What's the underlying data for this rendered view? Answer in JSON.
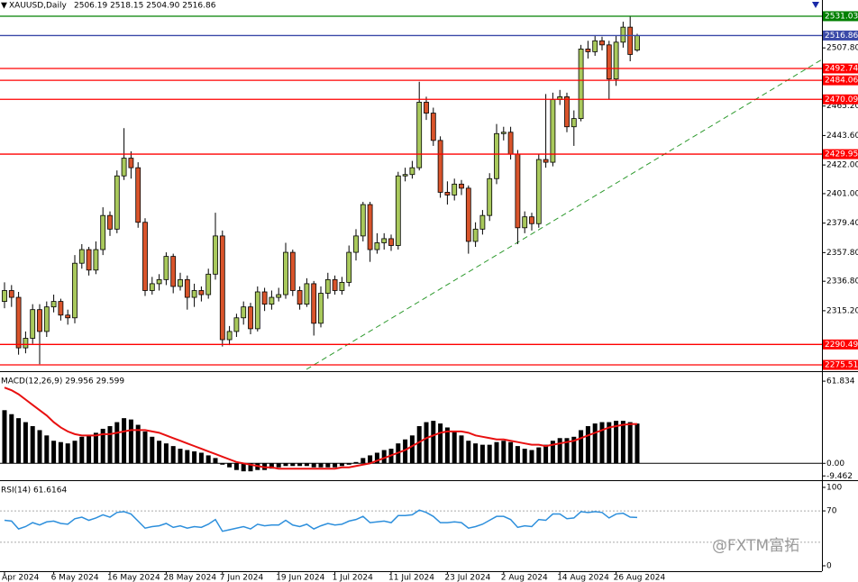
{
  "chart_data": [
    {
      "type": "candlestick",
      "title": "XAUUSD,Daily",
      "quote": "2506.19 2518.15 2504.90 2516.86",
      "categories": [
        "Apr 2024",
        null,
        null,
        null,
        null,
        null,
        null,
        "6 May 2024",
        null,
        null,
        null,
        null,
        null,
        null,
        null,
        "16 May 2024",
        null,
        null,
        null,
        null,
        null,
        null,
        null,
        "28 May 2024",
        null,
        null,
        null,
        null,
        null,
        null,
        null,
        "7 Jun 2024",
        null,
        null,
        null,
        null,
        null,
        null,
        null,
        "19 Jun 2024",
        null,
        null,
        null,
        null,
        null,
        null,
        null,
        "1 Jul 2024",
        null,
        null,
        null,
        null,
        null,
        null,
        null,
        "11 Jul 2024",
        null,
        null,
        null,
        null,
        null,
        null,
        null,
        "23 Jul 2024",
        null,
        null,
        null,
        null,
        null,
        null,
        null,
        "2 Aug 2024",
        null,
        null,
        null,
        null,
        null,
        null,
        null,
        "14 Aug 2024",
        null,
        null,
        null,
        null,
        null,
        null,
        null,
        "26 Aug 2024",
        null,
        null,
        null
      ],
      "open": [
        2322,
        2330,
        2325,
        2288,
        2295,
        2316,
        2300,
        2318,
        2322,
        2312,
        2310,
        2350,
        2360,
        2345,
        2360,
        2385,
        2375,
        2414,
        2427,
        2420,
        2380,
        2330,
        2335,
        2338,
        2355,
        2333,
        2338,
        2325,
        2330,
        2327,
        2342,
        2370,
        2294,
        2300,
        2310,
        2318,
        2302,
        2329,
        2320,
        2325,
        2327,
        2358,
        2330,
        2320,
        2335,
        2306,
        2328,
        2338,
        2330,
        2336,
        2358,
        2370,
        2393,
        2360,
        2365,
        2368,
        2363,
        2414,
        2415,
        2420,
        2468,
        2460,
        2440,
        2402,
        2400,
        2408,
        2405,
        2366,
        2375,
        2385,
        2412,
        2445,
        2446,
        2430,
        2376,
        2384,
        2379,
        2426,
        2424,
        2470,
        2472,
        2450,
        2456,
        2507,
        2505,
        2513,
        2510,
        2485,
        2512,
        2523,
        2506.19
      ],
      "high": [
        2336,
        2334,
        2329,
        2300,
        2320,
        2320,
        2322,
        2327,
        2324,
        2316,
        2356,
        2364,
        2362,
        2366,
        2391,
        2388,
        2418,
        2449,
        2432,
        2424,
        2383,
        2340,
        2342,
        2358,
        2357,
        2343,
        2341,
        2335,
        2333,
        2346,
        2387,
        2374,
        2304,
        2313,
        2322,
        2321,
        2333,
        2332,
        2330,
        2332,
        2365,
        2360,
        2333,
        2339,
        2337,
        2333,
        2343,
        2341,
        2340,
        2363,
        2375,
        2395,
        2395,
        2372,
        2372,
        2371,
        2417,
        2420,
        2425,
        2483,
        2472,
        2464,
        2443,
        2410,
        2412,
        2411,
        2407,
        2380,
        2389,
        2416,
        2452,
        2450,
        2450,
        2433,
        2388,
        2387,
        2430,
        2474,
        2475,
        2477,
        2475,
        2462,
        2510,
        2513,
        2517,
        2516,
        2513,
        2517,
        2527,
        2531.03,
        2518.15
      ],
      "low": [
        2317,
        2318,
        2283,
        2284,
        2291,
        2276,
        2296,
        2314,
        2308,
        2305,
        2306,
        2346,
        2341,
        2342,
        2356,
        2370,
        2372,
        2411,
        2412,
        2376,
        2326,
        2327,
        2330,
        2334,
        2328,
        2330,
        2316,
        2318,
        2322,
        2324,
        2338,
        2289,
        2290,
        2296,
        2305,
        2298,
        2300,
        2315,
        2316,
        2322,
        2324,
        2326,
        2316,
        2318,
        2297,
        2303,
        2324,
        2327,
        2327,
        2333,
        2352,
        2366,
        2351,
        2357,
        2360,
        2359,
        2360,
        2410,
        2412,
        2418,
        2455,
        2436,
        2398,
        2393,
        2396,
        2400,
        2357,
        2362,
        2371,
        2381,
        2408,
        2440,
        2426,
        2364,
        2372,
        2374,
        2376,
        2420,
        2421,
        2466,
        2446,
        2436,
        2454,
        2500,
        2502,
        2506,
        2470,
        2480,
        2508,
        2498,
        2504.9
      ],
      "close": [
        2330,
        2325,
        2288,
        2295,
        2316,
        2300,
        2318,
        2322,
        2312,
        2310,
        2350,
        2360,
        2345,
        2360,
        2385,
        2375,
        2414,
        2427,
        2420,
        2380,
        2330,
        2335,
        2338,
        2355,
        2333,
        2338,
        2325,
        2330,
        2327,
        2342,
        2370,
        2294,
        2300,
        2310,
        2318,
        2302,
        2329,
        2320,
        2325,
        2327,
        2358,
        2330,
        2320,
        2335,
        2306,
        2328,
        2338,
        2330,
        2336,
        2358,
        2370,
        2393,
        2360,
        2365,
        2368,
        2363,
        2414,
        2415,
        2420,
        2468,
        2460,
        2440,
        2402,
        2400,
        2408,
        2405,
        2366,
        2375,
        2385,
        2412,
        2445,
        2446,
        2430,
        2376,
        2384,
        2379,
        2426,
        2424,
        2470,
        2472,
        2450,
        2456,
        2507,
        2505,
        2513,
        2510,
        2485,
        2512,
        2523,
        2503,
        2516.86
      ],
      "up_color": "#a9c95c",
      "down_color": "#d9542b",
      "ylim": [
        2270.9,
        2542.9
      ],
      "yticks": [
        {
          "value": 2507.8,
          "label": "2507.80"
        },
        {
          "value": 2465.2,
          "label": "2465.20"
        },
        {
          "value": 2443.6,
          "label": "2443.60"
        },
        {
          "value": 2422,
          "label": "2422.00"
        },
        {
          "value": 2401,
          "label": "2401.00"
        },
        {
          "value": 2379.4,
          "label": "2379.40"
        },
        {
          "value": 2357.8,
          "label": "2357.80"
        },
        {
          "value": 2336.8,
          "label": "2336.80"
        },
        {
          "value": 2315.2,
          "label": "2315.20"
        }
      ],
      "levels": [
        {
          "value": 2531.03,
          "color": "#008000"
        },
        {
          "value": 2516.86,
          "color": "#3a49a8"
        },
        {
          "value": 2492.74,
          "color": "#ff0000"
        },
        {
          "value": 2484.06,
          "color": "#ff0000"
        },
        {
          "value": 2470.09,
          "color": "#ff0000"
        },
        {
          "value": 2429.95,
          "color": "#ff0000"
        },
        {
          "value": 2290.49,
          "color": "#ff0000"
        },
        {
          "value": 2275.51,
          "color": "#ff0000"
        }
      ]
    },
    {
      "type": "macd",
      "title": "MACD(12,26,9) 29.956 29.599",
      "histogram": [
        40,
        37,
        34,
        31,
        28,
        25,
        21,
        17,
        16,
        15,
        17,
        20,
        21,
        23,
        26,
        28,
        31,
        34,
        33,
        29,
        24,
        20,
        17,
        15,
        13,
        11,
        10,
        9,
        8,
        6,
        4,
        -1,
        -3,
        -5,
        -6,
        -6,
        -5,
        -5,
        -4,
        -3,
        -2,
        -2,
        -2,
        -2,
        -3,
        -3,
        -3,
        -3,
        -2,
        -1,
        1,
        4,
        6,
        8,
        10,
        11,
        15,
        18,
        21,
        28,
        31,
        32,
        30,
        27,
        24,
        21,
        17,
        15,
        14,
        14,
        16,
        17,
        16,
        13,
        11,
        10,
        12,
        14,
        17,
        19,
        19,
        20,
        25,
        28,
        30,
        31,
        31,
        32,
        32,
        31,
        29.956
      ],
      "signal": [
        57,
        55,
        52,
        48,
        44,
        40,
        36,
        31,
        27,
        24,
        22,
        21,
        21,
        21,
        22,
        22,
        23,
        24,
        25,
        25,
        25,
        24,
        23,
        21,
        19,
        17,
        15,
        13,
        11,
        9,
        7,
        5,
        3,
        1,
        0,
        -1,
        -2,
        -3,
        -3,
        -4,
        -4,
        -4,
        -4,
        -4,
        -4,
        -4,
        -4,
        -4,
        -3,
        -3,
        -2,
        -1,
        0,
        2,
        4,
        6,
        8,
        10,
        13,
        16,
        19,
        21,
        23,
        24,
        24,
        24,
        23,
        21,
        20,
        19,
        18,
        18,
        17,
        16,
        15,
        14,
        14,
        13,
        14,
        15,
        16,
        17,
        19,
        21,
        23,
        25,
        27,
        28,
        29,
        29.5,
        29.599
      ],
      "color": "#000000",
      "signal_color": "#e81010",
      "ylim": [
        -12,
        68
      ],
      "yticks": [
        61.834,
        {
          "value": 0,
          "label": "0.00"
        },
        -9.462
      ]
    },
    {
      "type": "line",
      "title": "RSI(14) 61.6164",
      "values": [
        58,
        57,
        47,
        50,
        55,
        52,
        56,
        57,
        54,
        53,
        60,
        62,
        58,
        61,
        65,
        62,
        68,
        69,
        66,
        57,
        48,
        50,
        51,
        54,
        49,
        51,
        48,
        50,
        49,
        53,
        59,
        44,
        46,
        48,
        50,
        47,
        53,
        51,
        52,
        52,
        58,
        52,
        50,
        53,
        47,
        51,
        54,
        52,
        53,
        57,
        59,
        63,
        55,
        56,
        57,
        55,
        64,
        64,
        65,
        71,
        68,
        63,
        55,
        55,
        56,
        55,
        48,
        50,
        53,
        58,
        63,
        63,
        59,
        49,
        51,
        50,
        59,
        58,
        66,
        66,
        60,
        61,
        69,
        68,
        69,
        68,
        61,
        66,
        67,
        62,
        61.6164
      ],
      "color": "#2d8fdc",
      "ylim": [
        -4.6,
        105.7
      ],
      "yticks": [
        100,
        70,
        0
      ],
      "levels": [
        70,
        30
      ]
    }
  ],
  "watermark": "@FXTM富拓"
}
